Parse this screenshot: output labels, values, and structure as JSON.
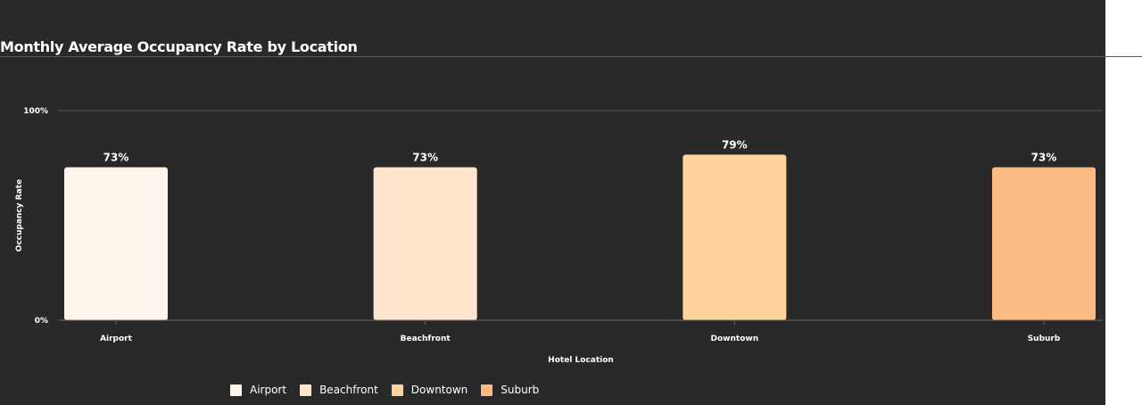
{
  "title": "Monthly Average Occupancy Rate by Location",
  "chart_data": {
    "type": "bar",
    "categories": [
      "Airport",
      "Beachfront",
      "Downtown",
      "Suburb"
    ],
    "values": [
      73,
      73,
      79,
      73
    ],
    "data_labels": [
      "73%",
      "73%",
      "79%",
      "73%"
    ],
    "colors": [
      "#fff5eb",
      "#fee6ce",
      "#fdd49e",
      "#fdbb84"
    ],
    "xlabel": "Hotel Location",
    "ylabel": "Occupancy Rate",
    "ylim": [
      0,
      100
    ],
    "yticks": [
      "0%",
      "100%"
    ],
    "grid": true,
    "legend_position": "bottom-left"
  },
  "legend": [
    {
      "label": "Airport",
      "color": "#fff5eb"
    },
    {
      "label": "Beachfront",
      "color": "#fee6ce"
    },
    {
      "label": "Downtown",
      "color": "#fdd49e"
    },
    {
      "label": "Suburb",
      "color": "#fdbb84"
    }
  ]
}
